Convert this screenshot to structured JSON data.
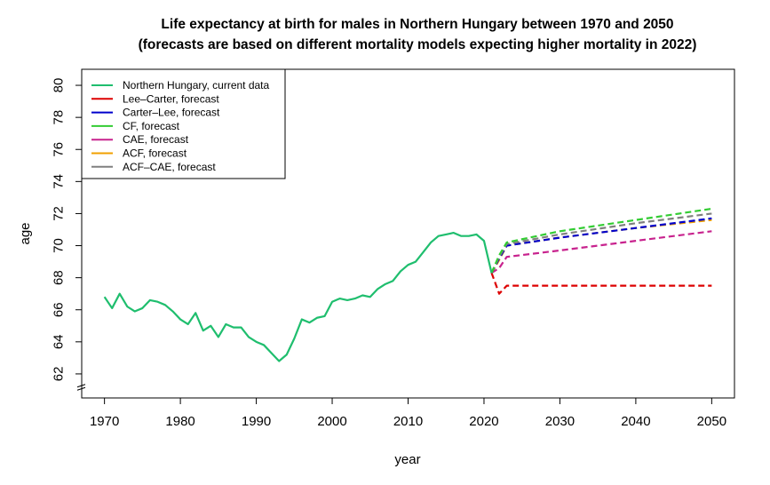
{
  "chart_data": {
    "type": "line",
    "title": "Life expectancy at birth for males in Northern Hungary between 1970 and 2050",
    "subtitle": "(forecasts are based on different mortality models expecting higher mortality in 2022)",
    "xlabel": "year",
    "ylabel": "age",
    "xlim": [
      1967,
      2053
    ],
    "ylim": [
      60.5,
      81
    ],
    "x_ticks": [
      "1970",
      "1980",
      "1990",
      "2000",
      "2010",
      "2020",
      "2030",
      "2040",
      "2050"
    ],
    "y_ticks": [
      "62",
      "64",
      "66",
      "68",
      "70",
      "72",
      "74",
      "76",
      "78",
      "80"
    ],
    "y_axis_break": true,
    "grid": false,
    "legend_position": "top-left",
    "series": [
      {
        "name": "Northern Hungary, current data",
        "color": "#1fbe6e",
        "style": "solid",
        "x": [
          1970,
          1971,
          1972,
          1973,
          1974,
          1975,
          1976,
          1977,
          1978,
          1979,
          1980,
          1981,
          1982,
          1983,
          1984,
          1985,
          1986,
          1987,
          1988,
          1989,
          1990,
          1991,
          1992,
          1993,
          1994,
          1995,
          1996,
          1997,
          1998,
          1999,
          2000,
          2001,
          2002,
          2003,
          2004,
          2005,
          2006,
          2007,
          2008,
          2009,
          2010,
          2011,
          2012,
          2013,
          2014,
          2015,
          2016,
          2017,
          2018,
          2019,
          2020,
          2021
        ],
        "y": [
          66.8,
          66.1,
          67.0,
          66.2,
          65.9,
          66.1,
          66.6,
          66.5,
          66.3,
          65.9,
          65.4,
          65.1,
          65.8,
          64.7,
          65.0,
          64.3,
          65.1,
          64.9,
          64.9,
          64.3,
          64.0,
          63.8,
          63.3,
          62.8,
          63.2,
          64.2,
          65.4,
          65.2,
          65.5,
          65.6,
          66.5,
          66.7,
          66.6,
          66.7,
          66.9,
          66.8,
          67.3,
          67.6,
          67.8,
          68.4,
          68.8,
          69.0,
          69.6,
          70.2,
          70.6,
          70.7,
          70.8,
          70.6,
          70.6,
          70.7,
          70.3,
          68.3
        ]
      },
      {
        "name": "Lee–Carter, forecast",
        "color": "#dd0000",
        "style": "dashed",
        "x": [
          2021,
          2022,
          2023,
          2030,
          2040,
          2050
        ],
        "y": [
          68.3,
          67.0,
          67.5,
          67.5,
          67.5,
          67.5
        ]
      },
      {
        "name": "Carter–Lee, forecast",
        "color": "#0000cc",
        "style": "dashed",
        "x": [
          2021,
          2022,
          2023,
          2030,
          2040,
          2050
        ],
        "y": [
          68.3,
          69.2,
          70.0,
          70.5,
          71.1,
          71.7
        ]
      },
      {
        "name": "CF, forecast",
        "color": "#33cc33",
        "style": "dashed",
        "x": [
          2021,
          2022,
          2023,
          2030,
          2040,
          2050
        ],
        "y": [
          68.3,
          69.4,
          70.2,
          70.9,
          71.6,
          72.3
        ]
      },
      {
        "name": "CAE, forecast",
        "color": "#c8238e",
        "style": "dashed",
        "x": [
          2021,
          2022,
          2023,
          2030,
          2040,
          2050
        ],
        "y": [
          68.3,
          68.6,
          69.3,
          69.7,
          70.3,
          70.9
        ]
      },
      {
        "name": "ACF, forecast",
        "color": "#f0a000",
        "style": "dashed",
        "x": [
          2021,
          2022,
          2023,
          2030,
          2040,
          2050
        ],
        "y": [
          68.3,
          69.1,
          70.0,
          70.5,
          71.1,
          71.6
        ]
      },
      {
        "name": "ACF–CAE, forecast",
        "color": "#808080",
        "style": "dashed",
        "x": [
          2021,
          2022,
          2023,
          2030,
          2040,
          2050
        ],
        "y": [
          68.3,
          69.3,
          70.1,
          70.7,
          71.4,
          72.0
        ]
      }
    ]
  }
}
